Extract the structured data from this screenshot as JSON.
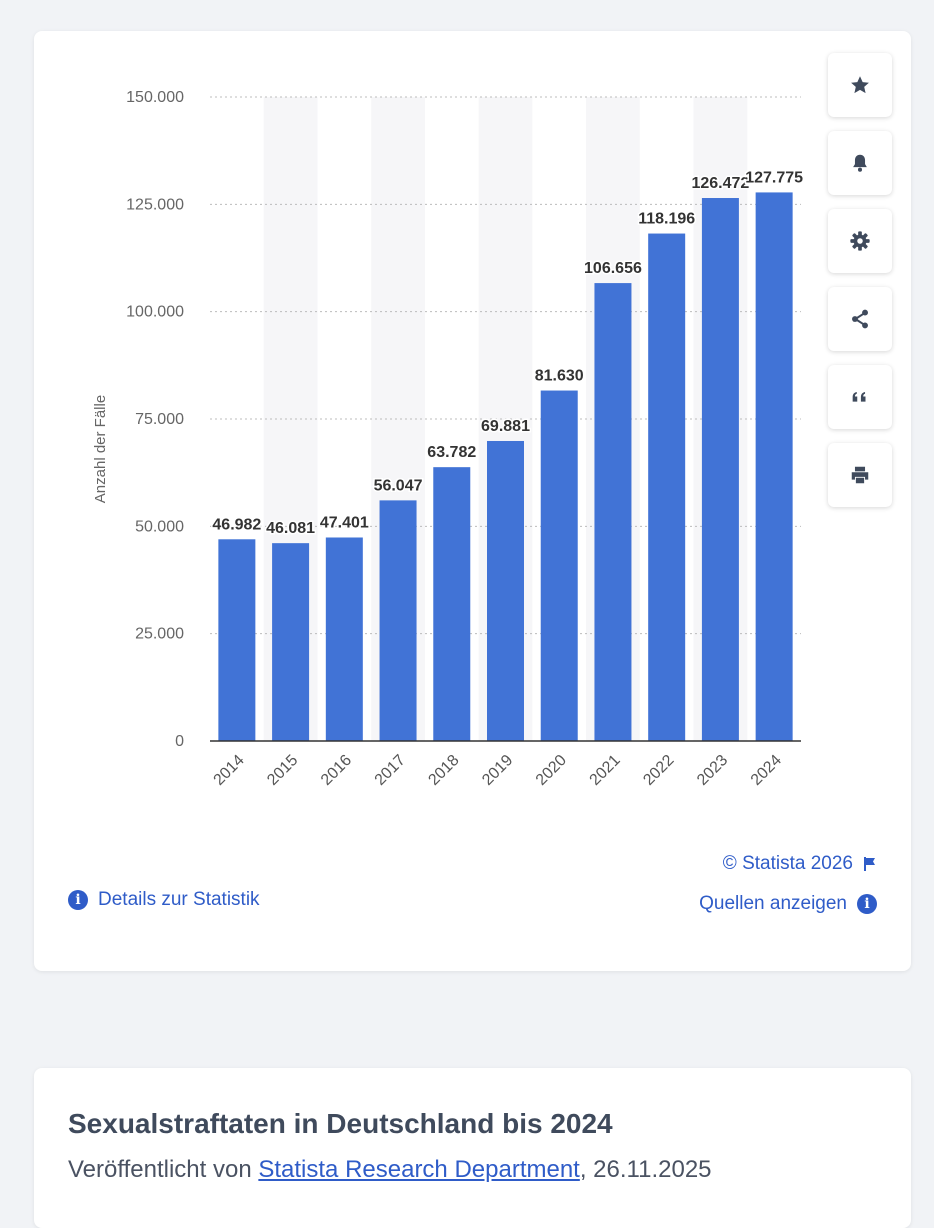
{
  "chart_data": {
    "type": "bar",
    "categories": [
      "2014",
      "2015",
      "2016",
      "2017",
      "2018",
      "2019",
      "2020",
      "2021",
      "2022",
      "2023",
      "2024"
    ],
    "values": [
      46982,
      46081,
      47401,
      56047,
      63782,
      69881,
      81630,
      106656,
      118196,
      126472,
      127775
    ],
    "value_labels": [
      "46.982",
      "46.081",
      "47.401",
      "56.047",
      "63.782",
      "69.881",
      "81.630",
      "106.656",
      "118.196",
      "126.472",
      "127.775"
    ],
    "ylabel": "Anzahl der Fälle",
    "xlabel": "",
    "ylim": [
      0,
      150000
    ],
    "yticks": [
      0,
      25000,
      50000,
      75000,
      100000,
      125000,
      150000
    ],
    "ytick_labels": [
      "0",
      "25.000",
      "50.000",
      "75.000",
      "100.000",
      "125.000",
      "150.000"
    ],
    "grid": "horizontal dotted",
    "bar_color": "#4173d6"
  },
  "toolbar": {
    "buttons": [
      {
        "icon": "star-icon"
      },
      {
        "icon": "bell-icon"
      },
      {
        "icon": "gear-icon"
      },
      {
        "icon": "share-icon"
      },
      {
        "icon": "quote-icon"
      },
      {
        "icon": "print-icon"
      }
    ],
    "icon_color": "#3f4a5c"
  },
  "footer": {
    "copyright": "© Statista 2026",
    "details_label": "Details zur Statistik",
    "sources_label": "Quellen anzeigen"
  },
  "info": {
    "title": "Sexualstraftaten in Deutschland bis 2024",
    "published_prefix": "Veröffentlicht von",
    "publisher": "Statista Research Department",
    "date_suffix": ", 26.11.2025"
  },
  "colors": {
    "accent": "#2f5cc8",
    "background": "#f1f3f6",
    "text": "#3f4a5c"
  }
}
